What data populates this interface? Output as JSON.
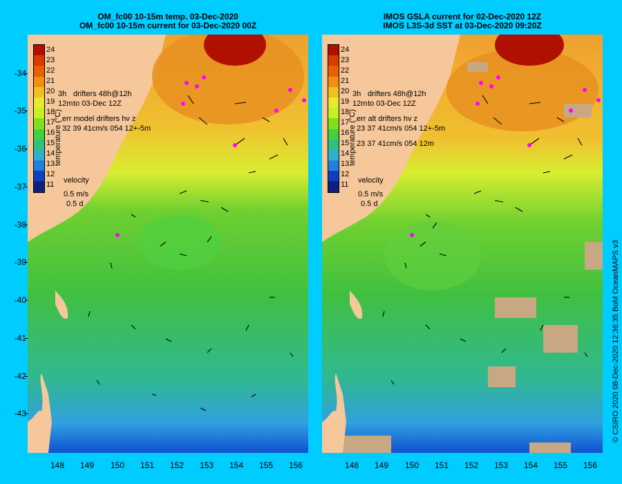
{
  "left_panel": {
    "title_line1": "OM_fc00 10-15m temp. 03-Dec-2020",
    "title_line2": "OM_fc00 10-15m current for 03-Dec-2020 00Z",
    "legend_drifters": "drifters 48h@12h",
    "legend_to": "to 03-Dec 12Z",
    "legend_err_label": "err model drifters hv z",
    "legend_err_values": "32 39 41cm/s 054 12+-5m",
    "legend_err_values2": "",
    "velocity_label": "velocity",
    "velocity_scale": "0.5 m/s",
    "velocity_time": "0.5 d"
  },
  "right_panel": {
    "title_line1": "IMOS GSLA current for 02-Dec-2020 12Z",
    "title_line2": "IMOS L3S-3d SST at 03-Dec-2020 09:20Z",
    "legend_drifters": "drifters 48h@12h",
    "legend_to": "to 03-Dec 12Z",
    "legend_err_label": "err alt drifters hv z",
    "legend_err_values": "23 37 41cm/s 054 12+-5m",
    "legend_err_values2": "23 37 41cm/s 054 12m",
    "velocity_label": "velocity",
    "velocity_scale": "0.5 m/s",
    "velocity_time": "0.5 d"
  },
  "legend_prefix_a": "3h",
  "legend_prefix_b": "12m",
  "colorbar": {
    "title": "temperature (°C)",
    "labels": [
      "24",
      "23",
      "22",
      "21",
      "20",
      "19",
      "18",
      "17",
      "16",
      "15",
      "14",
      "13",
      "12",
      "11"
    ],
    "colors": [
      "#b01000",
      "#d83a00",
      "#e86000",
      "#f09010",
      "#f0c020",
      "#e8e830",
      "#c8f020",
      "#80e020",
      "#40d040",
      "#30c080",
      "#30b0d0",
      "#2080e0",
      "#1040c0",
      "#102080"
    ]
  },
  "latitudes": [
    "-34",
    "-35",
    "-36",
    "-37",
    "-38",
    "-39",
    "-40",
    "-41",
    "-42",
    "-43"
  ],
  "longitudes": [
    "148",
    "149",
    "150",
    "151",
    "152",
    "153",
    "154",
    "155",
    "156"
  ],
  "credit": "© CSIRO 2020   08-Dec-2020 12:36:35 BoM OceanMAPS v3",
  "colors": {
    "background": "#00ccff",
    "land": "#f5c79a",
    "cloud": "#c8a882",
    "drifter": "#ff00ff"
  }
}
